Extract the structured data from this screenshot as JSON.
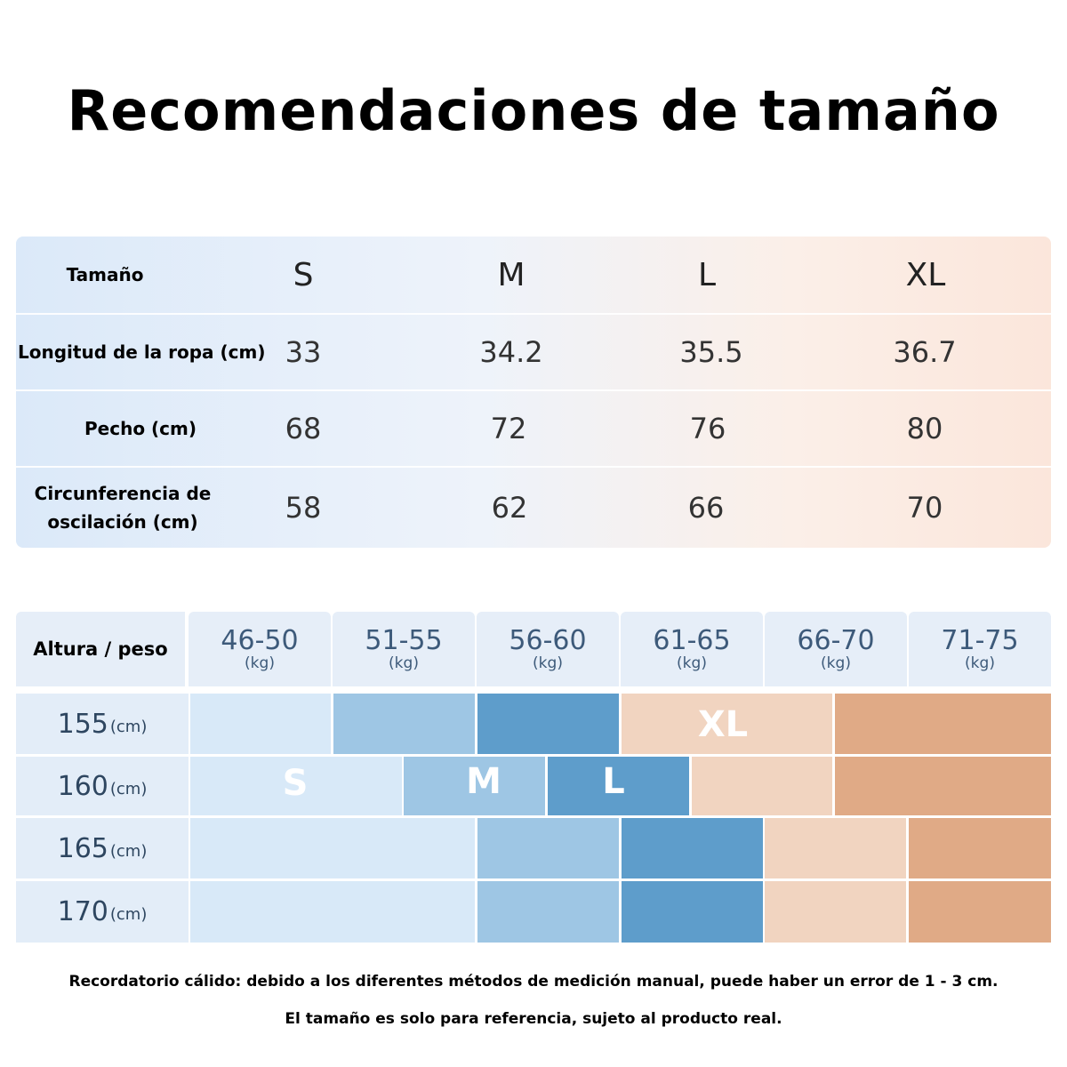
{
  "title": "Recomendaciones de tamaño",
  "measurements": {
    "header_label": "Tamaño",
    "sizes": [
      "S",
      "M",
      "L",
      "XL"
    ],
    "rows": [
      {
        "label": "Longitud de la ropa (cm)",
        "values": [
          "33",
          "34.2",
          "35.5",
          "36.7"
        ]
      },
      {
        "label": "Pecho (cm)",
        "values": [
          "68",
          "72",
          "76",
          "80"
        ]
      },
      {
        "label_line1": "Circunferencia de",
        "label_line2": "oscilación (cm)",
        "values": [
          "58",
          "62",
          "66",
          "70"
        ]
      }
    ]
  },
  "fit_grid": {
    "corner_label": "Altura / peso",
    "weight_unit": "(kg)",
    "weights": [
      "46-50",
      "51-55",
      "56-60",
      "61-65",
      "66-70",
      "71-75"
    ],
    "height_unit": "(cm)",
    "heights": [
      "155",
      "160",
      "165",
      "170"
    ],
    "size_letters": {
      "s": "S",
      "m": "M",
      "l": "L",
      "xl": "XL"
    },
    "colors": {
      "S": "#d8e9f8",
      "M": "#9ec6e4",
      "L": "#5e9dcb",
      "XL_light": "#f1d4c0",
      "XL_dark": "#e0aa86"
    }
  },
  "notes": {
    "line1": "Recordatorio cálido: debido a los diferentes métodos de medición manual, puede haber un error de 1 - 3 cm.",
    "line2": "El tamaño es solo para referencia, sujeto al producto real."
  }
}
